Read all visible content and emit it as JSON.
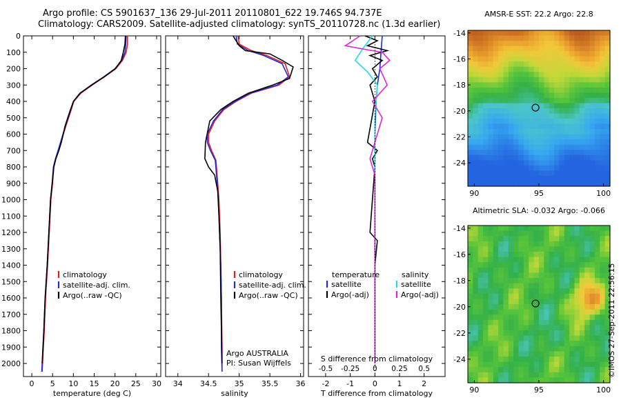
{
  "title": {
    "line1": "Argo profile: CS 5901637_136 29-Jul-2011 20110801_622 19.746S 94.737E",
    "line2": "Climatology: CARS2009. Satellite-adjusted climatology: synTS_20110728.nc (1.3d earlier)"
  },
  "timestamp": "©IMOS 27-Sep-2011 22:56:15",
  "colors": {
    "climatology": "#e41a1c",
    "satellite": "#1f2bd8",
    "argo": "#000000",
    "sal_satellite": "#22dce0",
    "sal_argo": "#e022d8"
  },
  "chart_data": [
    {
      "type": "line",
      "xlabel": "temperature (deg C)",
      "xticks": [
        "0",
        "5",
        "10",
        "15",
        "20",
        "25",
        "30"
      ],
      "xlim": [
        -2,
        31
      ],
      "ylim": [
        2080,
        0
      ],
      "yticks": [
        "0",
        "100",
        "200",
        "300",
        "400",
        "500",
        "600",
        "700",
        "800",
        "900",
        "1000",
        "1100",
        "1200",
        "1300",
        "1400",
        "1500",
        "1600",
        "1700",
        "1800",
        "1900",
        "2000"
      ],
      "legend": [
        "climatology",
        "satellite-adj. clim.",
        "Argo(..raw -QC)"
      ],
      "series": [
        {
          "name": "climatology",
          "x": [
            23.0,
            23.0,
            22.7,
            21.8,
            20.2,
            17.5,
            14.5,
            11.8,
            10.1,
            9.5,
            8.2,
            7.0,
            6.4,
            5.8,
            5.3,
            5.0,
            4.6,
            4.2,
            3.8,
            3.3,
            3.0,
            2.8,
            2.6,
            2.5
          ],
          "y": [
            0,
            50,
            100,
            150,
            200,
            250,
            300,
            350,
            400,
            450,
            550,
            650,
            700,
            750,
            800,
            900,
            1000,
            1200,
            1400,
            1600,
            1800,
            1900,
            2000,
            2050
          ]
        },
        {
          "name": "satellite-adj. clim.",
          "x": [
            22.7,
            22.6,
            22.4,
            21.6,
            20.0,
            17.3,
            14.3,
            11.6,
            10.0,
            9.4,
            8.1,
            6.9,
            6.3,
            5.7,
            5.2,
            4.9,
            4.5,
            4.1,
            3.7,
            3.2,
            2.9,
            2.7,
            2.5,
            2.4
          ],
          "y": [
            0,
            50,
            100,
            150,
            200,
            250,
            300,
            350,
            400,
            450,
            550,
            650,
            700,
            750,
            800,
            900,
            1000,
            1200,
            1400,
            1600,
            1800,
            1900,
            2000,
            2050
          ]
        },
        {
          "name": "Argo(..raw -QC)",
          "x": [
            22.5,
            22.4,
            22.0,
            21.5,
            20.1,
            17.4,
            14.4,
            11.6,
            10.0,
            9.3,
            8.0,
            7.1,
            6.5,
            5.8,
            5.3,
            4.9,
            4.5,
            4.1,
            3.7,
            3.2,
            2.9,
            2.7,
            2.5
          ],
          "y": [
            0,
            50,
            100,
            150,
            200,
            250,
            300,
            350,
            400,
            450,
            550,
            650,
            700,
            750,
            800,
            900,
            1000,
            1200,
            1400,
            1600,
            1800,
            1900,
            2000
          ]
        }
      ]
    },
    {
      "type": "line",
      "xlabel": "salinity",
      "xticks": [
        "34",
        "34.5",
        "35",
        "35.5",
        "36"
      ],
      "xlim": [
        33.8,
        36.05
      ],
      "ylim": [
        2080,
        0
      ],
      "legend": [
        "climatology",
        "satellite-adj. clim.",
        "Argo(..raw -QC)"
      ],
      "annotations": [
        "Argo AUSTRALIA",
        "PI: Susan Wijffels"
      ],
      "series": [
        {
          "name": "climatology",
          "x": [
            34.98,
            35.0,
            35.2,
            35.45,
            35.75,
            35.82,
            35.65,
            35.2,
            34.95,
            34.75,
            34.6,
            34.5,
            34.5,
            34.55,
            34.62,
            34.65,
            34.67,
            34.69,
            34.7,
            34.71,
            34.72,
            34.72
          ],
          "y": [
            0,
            50,
            90,
            120,
            170,
            250,
            300,
            350,
            400,
            450,
            520,
            600,
            650,
            700,
            760,
            900,
            1000,
            1200,
            1400,
            1600,
            1900,
            2050
          ]
        },
        {
          "name": "satellite-adj. clim.",
          "x": [
            34.95,
            34.97,
            35.15,
            35.4,
            35.7,
            35.8,
            35.62,
            35.18,
            34.93,
            34.73,
            34.58,
            34.48,
            34.48,
            34.53,
            34.61,
            34.64,
            34.66,
            34.68,
            34.7,
            34.71,
            34.71,
            34.72
          ],
          "y": [
            0,
            50,
            90,
            120,
            170,
            250,
            300,
            350,
            400,
            450,
            520,
            600,
            650,
            700,
            760,
            900,
            1000,
            1200,
            1400,
            1600,
            1900,
            2050
          ]
        },
        {
          "name": "Argo(..raw -QC)",
          "x": [
            34.9,
            34.95,
            35.0,
            35.1,
            35.5,
            35.7,
            35.88,
            35.82,
            35.55,
            35.15,
            34.9,
            34.7,
            34.52,
            34.45,
            34.44,
            34.5,
            34.6,
            34.65,
            34.67,
            34.69,
            34.7,
            34.71,
            34.72
          ],
          "y": [
            0,
            30,
            60,
            90,
            110,
            150,
            190,
            260,
            300,
            350,
            400,
            450,
            520,
            650,
            750,
            800,
            850,
            950,
            1100,
            1300,
            1600,
            1800,
            2000
          ]
        }
      ]
    },
    {
      "type": "line",
      "xlabel": "T difference from climatology",
      "xticks": [
        "-2",
        "-1",
        "0",
        "1",
        "2"
      ],
      "xlim": [
        -2.7,
        2.85
      ],
      "top_label": "S difference from climatology",
      "top_ticks": [
        "-0.5",
        "-0.25",
        "0",
        "0.25",
        "0.5"
      ],
      "ylim": [
        2080,
        0
      ],
      "legend_headers": [
        "temperature",
        "salinity"
      ],
      "legend": [
        "satellite",
        "Argo(-adj)",
        "satellite",
        "Argo(-adj)"
      ],
      "series": [
        {
          "name": "temperature satellite",
          "x": [
            0.3,
            0.25,
            0.2,
            0.1,
            0.05,
            0.0,
            0.0,
            0.0,
            0.0,
            0.0
          ],
          "y": [
            0,
            100,
            200,
            300,
            400,
            600,
            800,
            1000,
            1500,
            2000
          ]
        },
        {
          "name": "temperature Argo(-adj)",
          "x": [
            -0.4,
            0.1,
            -0.3,
            0.5,
            -0.2,
            0.3,
            -0.1,
            0.1,
            -0.2,
            0.0,
            -0.3,
            0.1,
            -0.1,
            0.0,
            -0.2,
            0.1,
            0.0,
            0.0,
            0.0
          ],
          "y": [
            0,
            30,
            60,
            90,
            120,
            150,
            200,
            250,
            300,
            400,
            650,
            700,
            750,
            800,
            1200,
            1250,
            1400,
            1800,
            2000
          ]
        },
        {
          "name": "salinity satellite",
          "x": [
            -0.1,
            -0.5,
            -0.8,
            -0.3,
            0.1,
            0.0,
            0.0,
            0.0
          ],
          "y": [
            0,
            80,
            150,
            220,
            300,
            500,
            1000,
            2000
          ]
        },
        {
          "name": "salinity Argo(-adj)",
          "x": [
            -0.6,
            -1.2,
            -0.5,
            0.3,
            0.6,
            0.2,
            0.5,
            -0.1,
            0.3,
            0.0,
            -0.1,
            -0.2,
            0.0,
            0.0,
            0.0
          ],
          "y": [
            0,
            60,
            80,
            100,
            150,
            200,
            300,
            400,
            500,
            650,
            700,
            750,
            850,
            1200,
            2000
          ]
        }
      ]
    },
    {
      "type": "heatmap",
      "title": "AMSR-E SST: 22.2 Argo: 22.8",
      "xticks": [
        "90",
        "95",
        "100"
      ],
      "yticks": [
        "-14",
        "-16",
        "-18",
        "-20",
        "-22",
        "-24"
      ],
      "xlim": [
        89.5,
        100.5
      ],
      "ylim": [
        -25.8,
        -13.8
      ],
      "marker": {
        "lon": 94.74,
        "lat": -19.75
      }
    },
    {
      "type": "heatmap",
      "title": "Altimetric SLA: -0.032 Argo: -0.066",
      "xticks": [
        "90",
        "95",
        "100"
      ],
      "yticks": [
        "-14",
        "-16",
        "-18",
        "-20",
        "-22",
        "-24"
      ],
      "xlim": [
        89.5,
        100.5
      ],
      "ylim": [
        -25.8,
        -13.8
      ],
      "marker": {
        "lon": 94.74,
        "lat": -19.75
      }
    }
  ]
}
